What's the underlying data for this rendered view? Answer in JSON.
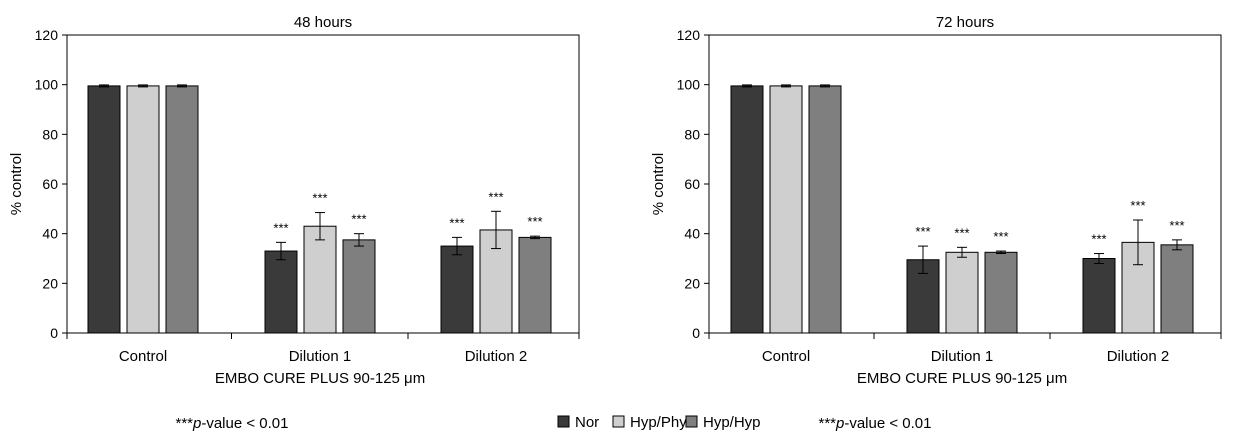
{
  "chart_data": [
    {
      "type": "bar",
      "title": "48 hours",
      "ylabel": "% control",
      "xlabel": "",
      "subtitle": "EMBO CURE PLUS 90-125 μm",
      "footnote_stars": "***",
      "footnote_p": "p",
      "footnote_rest": "-value < 0.01",
      "ylim": [
        0,
        120
      ],
      "yticks": [
        0,
        20,
        40,
        60,
        80,
        100,
        120
      ],
      "categories": [
        "Control",
        "Dilution 1",
        "Dilution 2"
      ],
      "series": [
        {
          "name": "Nor",
          "color": "#3a3a3a",
          "values": [
            99.5,
            33,
            35
          ],
          "errors": [
            0.4,
            3.5,
            3.5
          ],
          "annotations": [
            "",
            "***",
            "***"
          ]
        },
        {
          "name": "Hyp/Phy",
          "color": "#cfcfcf",
          "values": [
            99.5,
            43,
            41.5
          ],
          "errors": [
            0.4,
            5.5,
            7.5
          ],
          "annotations": [
            "",
            "***",
            "***"
          ]
        },
        {
          "name": "Hyp/Hyp",
          "color": "#7f7f7f",
          "values": [
            99.5,
            37.5,
            38.5
          ],
          "errors": [
            0.4,
            2.5,
            0.5
          ],
          "annotations": [
            "",
            "***",
            "***"
          ]
        }
      ],
      "grid": false,
      "legend": "none"
    },
    {
      "type": "bar",
      "title": "72 hours",
      "ylabel": "% control",
      "xlabel": "",
      "subtitle": "EMBO CURE PLUS 90-125 μm",
      "footnote_stars": "***",
      "footnote_p": "p",
      "footnote_rest": "-value < 0.01",
      "ylim": [
        0,
        120
      ],
      "yticks": [
        0,
        20,
        40,
        60,
        80,
        100,
        120
      ],
      "categories": [
        "Control",
        "Dilution 1",
        "Dilution 2"
      ],
      "series": [
        {
          "name": "Nor",
          "color": "#3a3a3a",
          "values": [
            99.5,
            29.5,
            30
          ],
          "errors": [
            0.4,
            5.5,
            2.0
          ],
          "annotations": [
            "",
            "***",
            "***"
          ]
        },
        {
          "name": "Hyp/Phy",
          "color": "#cfcfcf",
          "values": [
            99.5,
            32.5,
            36.5
          ],
          "errors": [
            0.4,
            2.0,
            9.0
          ],
          "annotations": [
            "",
            "***",
            "***"
          ]
        },
        {
          "name": "Hyp/Hyp",
          "color": "#7f7f7f",
          "values": [
            99.5,
            32.5,
            35.5
          ],
          "errors": [
            0.4,
            0.5,
            2.0
          ],
          "annotations": [
            "",
            "***",
            "***"
          ]
        }
      ],
      "grid": false,
      "legend": "none"
    }
  ],
  "legend": {
    "placement": "bottom-center",
    "items": [
      {
        "name": "Nor",
        "color": "#3a3a3a"
      },
      {
        "name": "Hyp/Phy",
        "color": "#cfcfcf"
      },
      {
        "name": "Hyp/Hyp",
        "color": "#7f7f7f"
      }
    ]
  }
}
